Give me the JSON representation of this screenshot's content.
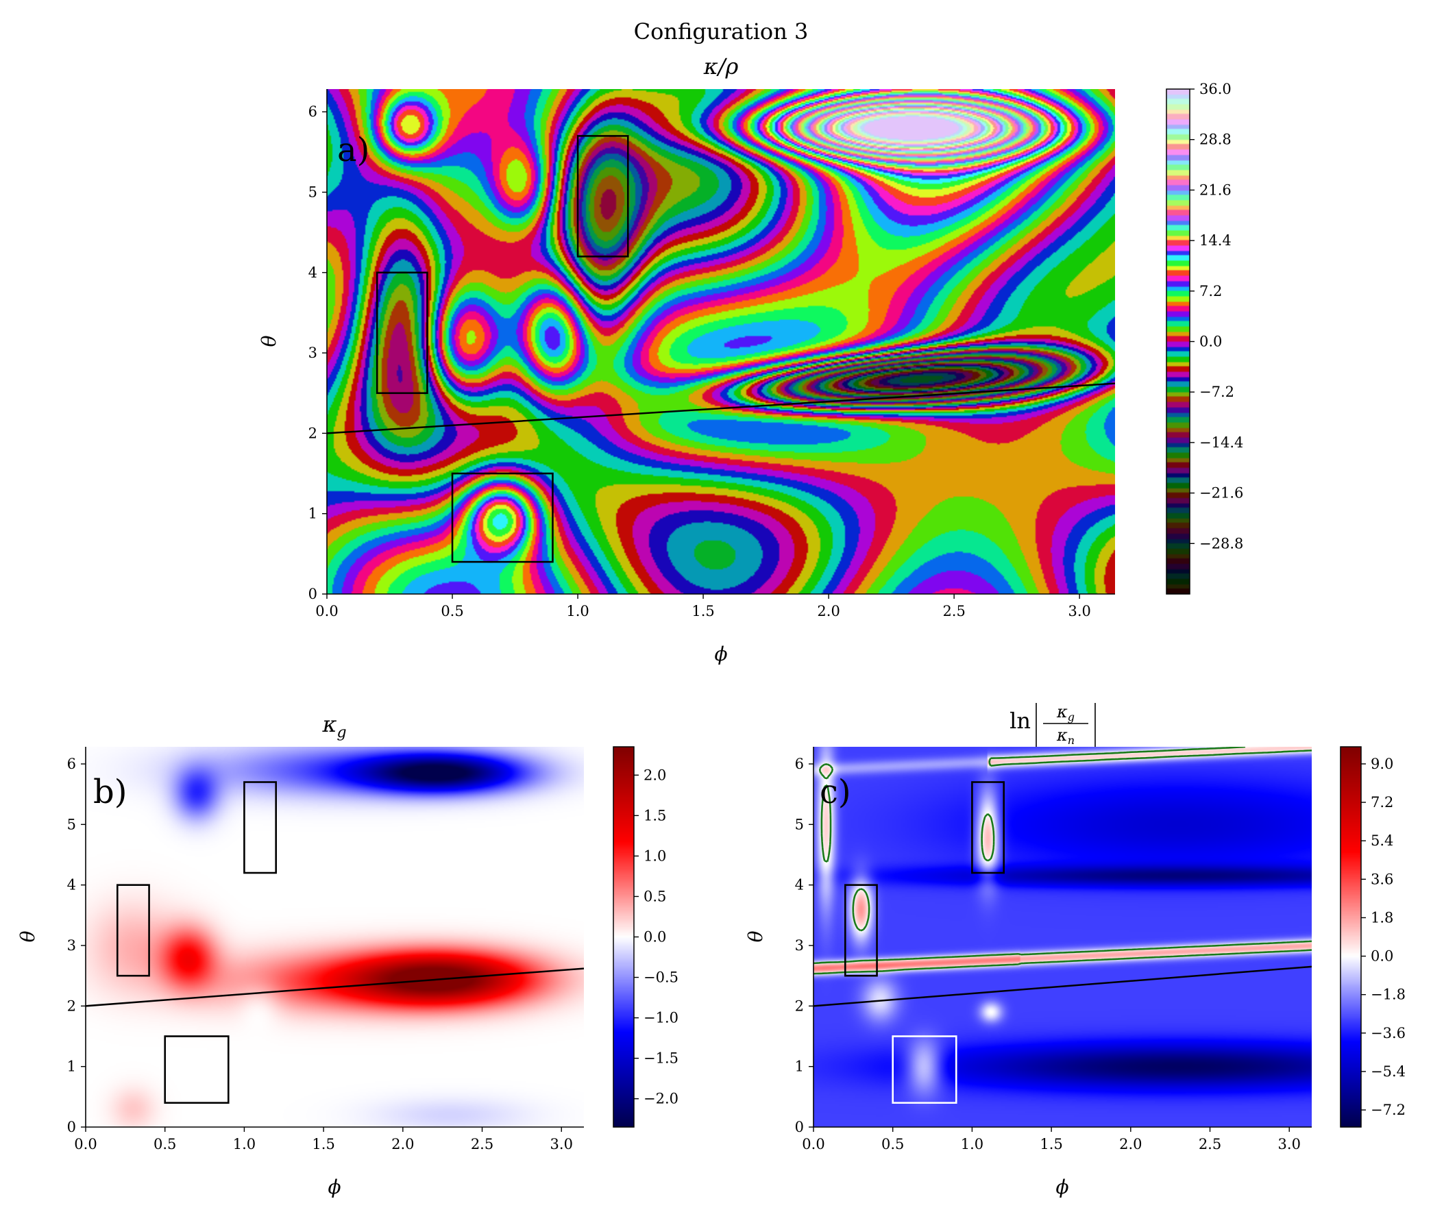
{
  "figure_title": "Configuration 3",
  "chart_data": [
    {
      "type": "heatmap",
      "panel_label": "a)",
      "title": "κ/ρ",
      "xlabel": "ϕ",
      "ylabel": "θ",
      "xlim": [
        0,
        3.14159
      ],
      "ylim": [
        0,
        6.28318
      ],
      "xticks": [
        "0.0",
        "0.5",
        "1.0",
        "1.5",
        "2.0",
        "2.5",
        "3.0"
      ],
      "yticks": [
        "0",
        "1",
        "2",
        "3",
        "4",
        "5",
        "6"
      ],
      "colorbar": {
        "range": [
          -36.0,
          36.0
        ],
        "ticks": [
          "36.0",
          "28.8",
          "21.6",
          "14.4",
          "7.2",
          "0.0",
          "−7.2",
          "−14.4",
          "−21.6",
          "−28.8"
        ],
        "colormap": "cyclic-rainbow"
      },
      "line": {
        "x": [
          0,
          3.14159
        ],
        "y": [
          2.0,
          2.62
        ]
      },
      "boxes": [
        {
          "phi": [
            0.2,
            0.4
          ],
          "theta": [
            2.5,
            4.0
          ],
          "color": "#000000"
        },
        {
          "phi": [
            1.0,
            1.2
          ],
          "theta": [
            4.2,
            5.7
          ],
          "color": "#000000"
        },
        {
          "phi": [
            0.5,
            0.9
          ],
          "theta": [
            0.4,
            1.5
          ],
          "color": "#000000"
        }
      ],
      "notes": "Contour map of κ/ρ with extrema near (ϕ≈0.7, θ≈1), (ϕ≈2.27, θ≈5.8), (ϕ≈2.27, θ≈2.2) and saddle at (ϕ≈2.27, θ≈4.2)"
    },
    {
      "type": "heatmap",
      "panel_label": "b)",
      "title": "κ",
      "title_sub": "g",
      "xlabel": "ϕ",
      "ylabel": "θ",
      "xlim": [
        0,
        3.14159
      ],
      "ylim": [
        0,
        6.28318
      ],
      "xticks": [
        "0.0",
        "0.5",
        "1.0",
        "1.5",
        "2.0",
        "2.5",
        "3.0"
      ],
      "yticks": [
        "0",
        "1",
        "2",
        "3",
        "4",
        "5",
        "6"
      ],
      "colorbar": {
        "range": [
          -2.35,
          2.35
        ],
        "ticks": [
          "2.0",
          "1.5",
          "1.0",
          "0.5",
          "0.0",
          "−0.5",
          "−1.0",
          "−1.5",
          "−2.0"
        ],
        "colormap": "seismic"
      },
      "line": {
        "x": [
          0,
          3.14159
        ],
        "y": [
          2.0,
          2.62
        ]
      },
      "boxes": [
        {
          "phi": [
            0.2,
            0.4
          ],
          "theta": [
            2.5,
            4.0
          ],
          "color": "#000000"
        },
        {
          "phi": [
            1.0,
            1.2
          ],
          "theta": [
            4.2,
            5.7
          ],
          "color": "#000000"
        },
        {
          "phi": [
            0.5,
            0.9
          ],
          "theta": [
            0.4,
            1.5
          ],
          "color": "#000000"
        }
      ]
    },
    {
      "type": "heatmap",
      "panel_label": "c)",
      "title": "ln |κg/κn|",
      "title_ln": "ln",
      "title_num": "κ",
      "title_num_sub": "g",
      "title_den": "κ",
      "title_den_sub": "n",
      "xlabel": "ϕ",
      "ylabel": "θ",
      "xlim": [
        0,
        3.14159
      ],
      "ylim": [
        0,
        6.28318
      ],
      "xticks": [
        "0.0",
        "0.5",
        "1.0",
        "1.5",
        "2.0",
        "2.5",
        "3.0"
      ],
      "yticks": [
        "0",
        "1",
        "2",
        "3",
        "4",
        "5",
        "6"
      ],
      "colorbar": {
        "range": [
          -8.0,
          9.8
        ],
        "ticks": [
          "9.0",
          "7.2",
          "5.4",
          "3.6",
          "1.8",
          "0.0",
          "−1.8",
          "−3.6",
          "−5.4",
          "−7.2"
        ],
        "highlight_tick": "0.0",
        "highlight_color": "#1a7a1a",
        "colormap": "seismic"
      },
      "line": {
        "x": [
          0,
          3.14159
        ],
        "y": [
          2.0,
          2.65
        ]
      },
      "contour_level": 0.0,
      "contour_color": "#1a7a1a",
      "boxes": [
        {
          "phi": [
            0.2,
            0.4
          ],
          "theta": [
            2.5,
            4.0
          ],
          "color": "#000000"
        },
        {
          "phi": [
            1.0,
            1.2
          ],
          "theta": [
            4.2,
            5.7
          ],
          "color": "#000000"
        },
        {
          "phi": [
            0.5,
            0.9
          ],
          "theta": [
            0.4,
            1.5
          ],
          "color": "#ffffff"
        }
      ]
    }
  ]
}
